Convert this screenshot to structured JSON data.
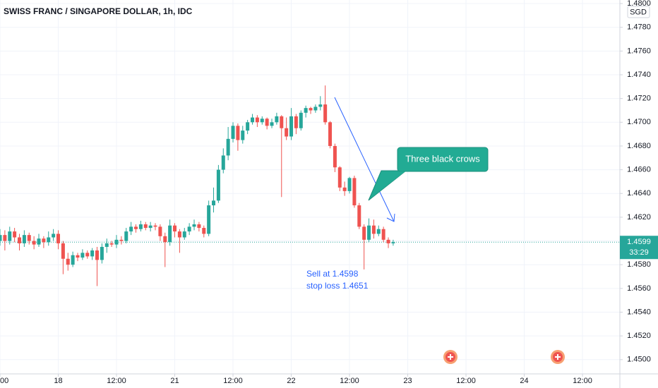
{
  "chart_data": {
    "type": "candlestick",
    "title": "SWISS FRANC / SINGAPORE DOLLAR, 1h, IDC",
    "currency": "SGD",
    "up_color": "#26a69a",
    "down_color": "#ef5350",
    "grid": true,
    "x": [
      0,
      1,
      2,
      3,
      4,
      5,
      6,
      7,
      8,
      9,
      10,
      11,
      12,
      13,
      14,
      15,
      16,
      17,
      18,
      19,
      20,
      21,
      22,
      23,
      24,
      25,
      26,
      27,
      28,
      29,
      30,
      31,
      32,
      33,
      34,
      35,
      36,
      37,
      38,
      39,
      40,
      41,
      42,
      43,
      44,
      45,
      46,
      47,
      48,
      49,
      50,
      51,
      52,
      53,
      54,
      55,
      56,
      57,
      58,
      59,
      60,
      61,
      62,
      63,
      64,
      65,
      66,
      67,
      68,
      69,
      70,
      71,
      72,
      73,
      74,
      75,
      76,
      77,
      78,
      79,
      80,
      81
    ],
    "open": [
      1.46,
      1.4605,
      1.46,
      1.4608,
      1.4603,
      1.4598,
      1.4605,
      1.46,
      1.4597,
      1.4602,
      1.4599,
      1.4603,
      1.4606,
      1.4598,
      1.4585,
      1.458,
      1.4588,
      1.4586,
      1.459,
      1.4587,
      1.4592,
      1.4584,
      1.4595,
      1.4598,
      1.4597,
      1.4601,
      1.46,
      1.4608,
      1.4612,
      1.461,
      1.4614,
      1.4611,
      1.4613,
      1.4612,
      1.4604,
      1.4599,
      1.4613,
      1.4608,
      1.4603,
      1.4608,
      1.4612,
      1.4614,
      1.4611,
      1.4606,
      1.463,
      1.4634,
      1.466,
      1.4672,
      1.4686,
      1.4697,
      1.4685,
      1.4693,
      1.47,
      1.4704,
      1.47,
      1.4703,
      1.4697,
      1.47,
      1.4705,
      1.4695,
      1.4688,
      1.4705,
      1.4695,
      1.4708,
      1.4712,
      1.471,
      1.4713,
      1.4715,
      1.47,
      1.468,
      1.4662,
      1.4645,
      1.4642,
      1.4653,
      1.463,
      1.4612,
      1.4601,
      1.4613,
      1.4606,
      1.461,
      1.4601,
      1.4598
    ],
    "high": [
      1.461,
      1.4609,
      1.4612,
      1.4611,
      1.4606,
      1.4609,
      1.4607,
      1.4604,
      1.4606,
      1.4604,
      1.4608,
      1.461,
      1.4609,
      1.46,
      1.459,
      1.4591,
      1.459,
      1.4593,
      1.4592,
      1.4594,
      1.4595,
      1.4598,
      1.4602,
      1.46,
      1.4605,
      1.4604,
      1.4611,
      1.4616,
      1.4614,
      1.4617,
      1.4616,
      1.4616,
      1.4615,
      1.4614,
      1.4607,
      1.4618,
      1.4615,
      1.461,
      1.4611,
      1.4615,
      1.4618,
      1.4616,
      1.4613,
      1.4634,
      1.4645,
      1.4664,
      1.4678,
      1.4696,
      1.47,
      1.4699,
      1.4697,
      1.4702,
      1.4707,
      1.4706,
      1.4705,
      1.4704,
      1.4703,
      1.4708,
      1.4706,
      1.4704,
      1.4712,
      1.4707,
      1.471,
      1.4714,
      1.4713,
      1.4715,
      1.4722,
      1.4731,
      1.4701,
      1.4682,
      1.4663,
      1.465,
      1.4654,
      1.4655,
      1.4632,
      1.4614,
      1.4619,
      1.4618,
      1.4613,
      1.4612,
      1.4603,
      1.4601
    ],
    "low": [
      1.4596,
      1.4592,
      1.4597,
      1.4599,
      1.4592,
      1.4595,
      1.4597,
      1.4593,
      1.4595,
      1.4594,
      1.4596,
      1.46,
      1.4593,
      1.4572,
      1.4575,
      1.4578,
      1.4583,
      1.4584,
      1.4585,
      1.4584,
      1.4562,
      1.4581,
      1.459,
      1.4595,
      1.4594,
      1.4597,
      1.4598,
      1.4605,
      1.4607,
      1.4608,
      1.4609,
      1.4608,
      1.4609,
      1.46,
      1.4578,
      1.4596,
      1.4603,
      1.459,
      1.4601,
      1.4605,
      1.4609,
      1.4608,
      1.4603,
      1.4604,
      1.4624,
      1.4632,
      1.4657,
      1.4668,
      1.4683,
      1.4676,
      1.4682,
      1.469,
      1.4698,
      1.4696,
      1.4698,
      1.4694,
      1.4695,
      1.4698,
      1.4637,
      1.4685,
      1.4685,
      1.469,
      1.4693,
      1.4704,
      1.4707,
      1.4708,
      1.471,
      1.4698,
      1.4678,
      1.4658,
      1.4642,
      1.4638,
      1.464,
      1.4628,
      1.461,
      1.4576,
      1.4599,
      1.4602,
      1.4604,
      1.4599,
      1.4594,
      1.4596
    ],
    "close": [
      1.4605,
      1.46,
      1.4608,
      1.4603,
      1.4598,
      1.4605,
      1.46,
      1.4597,
      1.4602,
      1.4599,
      1.4603,
      1.4606,
      1.4598,
      1.4585,
      1.458,
      1.4588,
      1.4586,
      1.459,
      1.4587,
      1.4592,
      1.4584,
      1.4595,
      1.4598,
      1.4597,
      1.4601,
      1.46,
      1.4608,
      1.4612,
      1.461,
      1.4614,
      1.4611,
      1.4613,
      1.4612,
      1.4604,
      1.4599,
      1.4613,
      1.4608,
      1.4603,
      1.4608,
      1.4612,
      1.4614,
      1.4611,
      1.4606,
      1.463,
      1.4634,
      1.466,
      1.4672,
      1.4686,
      1.4697,
      1.4685,
      1.4693,
      1.47,
      1.4704,
      1.47,
      1.4703,
      1.4697,
      1.47,
      1.4705,
      1.4695,
      1.4688,
      1.4705,
      1.4695,
      1.4708,
      1.4712,
      1.471,
      1.4713,
      1.4715,
      1.47,
      1.468,
      1.4662,
      1.4645,
      1.4642,
      1.4653,
      1.463,
      1.4612,
      1.4601,
      1.4613,
      1.4606,
      1.461,
      1.4601,
      1.4598,
      1.4599
    ],
    "xlim": [
      0,
      127.7
    ],
    "xticks": [
      {
        "value": 0,
        "label": "00"
      },
      {
        "value": 12,
        "label": "18"
      },
      {
        "value": 24,
        "label": "12:00"
      },
      {
        "value": 36,
        "label": "21"
      },
      {
        "value": 48,
        "label": "12:00"
      },
      {
        "value": 60,
        "label": "22"
      },
      {
        "value": 72,
        "label": "12:00"
      },
      {
        "value": 84,
        "label": "23"
      },
      {
        "value": 96,
        "label": "12:00"
      },
      {
        "value": 108,
        "label": "24"
      },
      {
        "value": 120,
        "label": "12:00"
      }
    ],
    "ylim": [
      1.4488,
      1.4803
    ],
    "yticks": [
      {
        "value": 1.45,
        "label": "1.4500"
      },
      {
        "value": 1.452,
        "label": "1.4520"
      },
      {
        "value": 1.454,
        "label": "1.4540"
      },
      {
        "value": 1.456,
        "label": "1.4560"
      },
      {
        "value": 1.458,
        "label": "1.4580"
      },
      {
        "value": 1.46,
        "label": "1.4600"
      },
      {
        "value": 1.462,
        "label": "1.4620"
      },
      {
        "value": 1.464,
        "label": "1.4640"
      },
      {
        "value": 1.466,
        "label": "1.4660"
      },
      {
        "value": 1.468,
        "label": "1.4680"
      },
      {
        "value": 1.47,
        "label": "1.4700"
      },
      {
        "value": 1.472,
        "label": "1.4720"
      },
      {
        "value": 1.474,
        "label": "1.4740"
      },
      {
        "value": 1.476,
        "label": "1.4760"
      },
      {
        "value": 1.478,
        "label": "1.4780"
      },
      {
        "value": 1.48,
        "label": "1.4800"
      }
    ],
    "last_price": 1.4599,
    "countdown": "33:29",
    "annotations": [
      "Three black crows",
      "Sell at 1.4598",
      "stop loss 1.4651"
    ]
  }
}
